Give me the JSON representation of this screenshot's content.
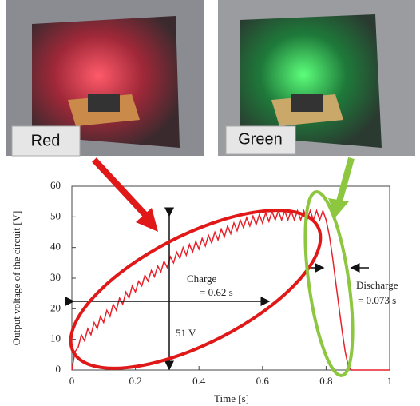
{
  "photos": [
    {
      "label": "Red"
    },
    {
      "label": "Green"
    }
  ],
  "chart_data": {
    "type": "line",
    "y_label": "Output voltage of the circuit [V]",
    "x_label": "Time [s]",
    "annotations": [
      "Charge",
      "= 0.62 s",
      "Discharge",
      "= 0.073 s",
      "51 V"
    ],
    "x": [
      0,
      0.01,
      0.02,
      0.03,
      0.04,
      0.05,
      0.06,
      0.07,
      0.08,
      0.09,
      0.1,
      0.11,
      0.12,
      0.13,
      0.14,
      0.15,
      0.16,
      0.17,
      0.18,
      0.19,
      0.2,
      0.21,
      0.22,
      0.23,
      0.24,
      0.25,
      0.26,
      0.27,
      0.28,
      0.29,
      0.3,
      0.31,
      0.32,
      0.33,
      0.34,
      0.35,
      0.36,
      0.37,
      0.38,
      0.39,
      0.4,
      0.41,
      0.42,
      0.43,
      0.44,
      0.45,
      0.46,
      0.47,
      0.48,
      0.49,
      0.5,
      0.51,
      0.52,
      0.53,
      0.54,
      0.55,
      0.56,
      0.57,
      0.58,
      0.59,
      0.6,
      0.61,
      0.62,
      0.63,
      0.64,
      0.65,
      0.66,
      0.67,
      0.68,
      0.69,
      0.7,
      0.71,
      0.72,
      0.73,
      0.74,
      0.75,
      0.76,
      0.77,
      0.78,
      0.79,
      0.8,
      0.81,
      0.82,
      0.83,
      0.84,
      0.85,
      0.86,
      0.87,
      0.88,
      0.9,
      0.95,
      1
    ],
    "series": [
      {
        "color": "#e8202a",
        "values": [
          0,
          6,
          7.5,
          11.5,
          9.5,
          13.5,
          11.5,
          15.5,
          13.5,
          17.5,
          15.5,
          19.5,
          17.5,
          21.5,
          19.5,
          23.5,
          21.5,
          25.5,
          23.5,
          27.5,
          25.5,
          29,
          27.5,
          31,
          29,
          32.5,
          30.5,
          34,
          32,
          35.5,
          33.5,
          37,
          35,
          38.5,
          36.5,
          40,
          37.5,
          41,
          38.5,
          42,
          39.5,
          43,
          40.5,
          44,
          41.5,
          45,
          42.5,
          46,
          43.5,
          47,
          44.5,
          48,
          45.5,
          49,
          46.5,
          49.75,
          47,
          50.25,
          47.5,
          50.75,
          48,
          51.25,
          48.5,
          51.75,
          49,
          52,
          49,
          52,
          49,
          52,
          49,
          52,
          49,
          52,
          49,
          52,
          49,
          52,
          49,
          52,
          49,
          44,
          37,
          29,
          21,
          13,
          6,
          1,
          0,
          0,
          0,
          0
        ]
      }
    ],
    "xlim": [
      0,
      1
    ],
    "ylim": [
      0,
      60
    ],
    "xticks": [
      0,
      0.2,
      0.4,
      0.6,
      0.8,
      1
    ],
    "yticks": [
      0,
      10,
      20,
      30,
      40,
      50,
      60
    ]
  }
}
